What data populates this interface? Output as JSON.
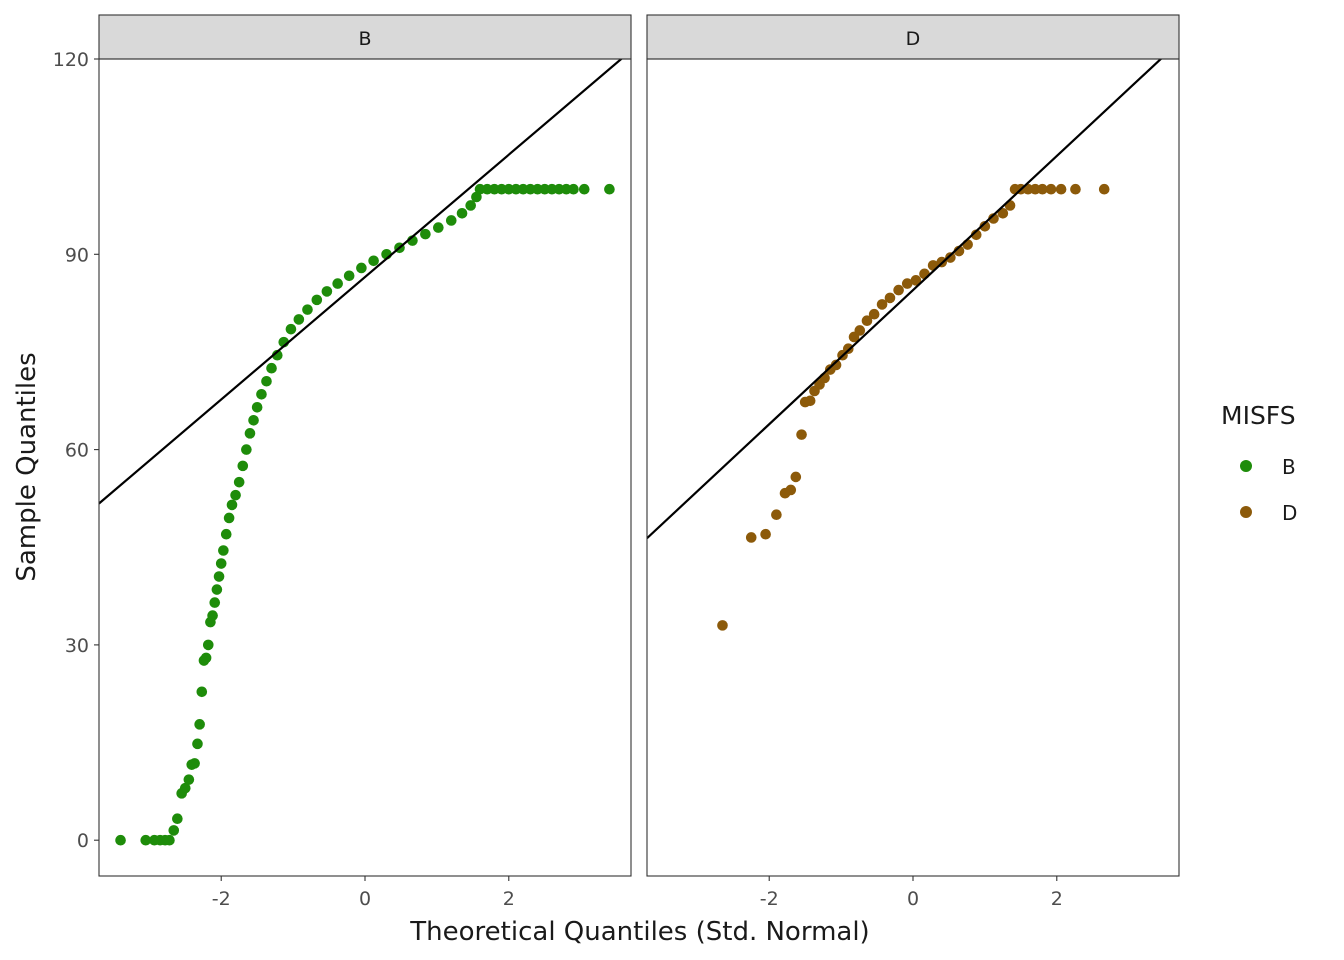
{
  "chart_data": {
    "type": "scatter",
    "subtype": "qq-plot",
    "xlabel": "Theoretical Quantiles (Std. Normal)",
    "ylabel": "Sample Quantiles",
    "xlim": [
      -3.7,
      3.7
    ],
    "ylim": [
      -5.5,
      120
    ],
    "x_ticks": [
      -2,
      0,
      2
    ],
    "x_tick_labels": [
      "-2",
      "0",
      "2"
    ],
    "y_ticks": [
      0,
      30,
      60,
      90,
      120
    ],
    "y_tick_labels": [
      "0",
      "30",
      "60",
      "90",
      "120"
    ],
    "grid": false,
    "legend": {
      "title": "MISFS",
      "position": "right",
      "entries": [
        {
          "label": "B",
          "color": "#1e8c0a"
        },
        {
          "label": "D",
          "color": "#8c5a0a"
        }
      ]
    },
    "panels": [
      {
        "strip": "B",
        "color": "#1e8c0a",
        "reference_line": {
          "intercept": 86.5,
          "slope": 9.4
        },
        "points": [
          [
            -3.4,
            0
          ],
          [
            -3.05,
            0
          ],
          [
            -2.93,
            0
          ],
          [
            -2.85,
            0
          ],
          [
            -2.78,
            0
          ],
          [
            -2.72,
            0
          ],
          [
            -2.66,
            1.5
          ],
          [
            -2.61,
            3.3
          ],
          [
            -2.55,
            7.2
          ],
          [
            -2.5,
            8
          ],
          [
            -2.45,
            9.3
          ],
          [
            -2.41,
            11.6
          ],
          [
            -2.37,
            11.8
          ],
          [
            -2.33,
            14.8
          ],
          [
            -2.3,
            17.8
          ],
          [
            -2.27,
            22.8
          ],
          [
            -2.24,
            27.6
          ],
          [
            -2.21,
            28
          ],
          [
            -2.18,
            30
          ],
          [
            -2.15,
            33.5
          ],
          [
            -2.12,
            34.5
          ],
          [
            -2.09,
            36.5
          ],
          [
            -2.06,
            38.5
          ],
          [
            -2.03,
            40.5
          ],
          [
            -2.0,
            42.5
          ],
          [
            -1.97,
            44.5
          ],
          [
            -1.93,
            47
          ],
          [
            -1.89,
            49.5
          ],
          [
            -1.85,
            51.5
          ],
          [
            -1.8,
            53
          ],
          [
            -1.75,
            55
          ],
          [
            -1.7,
            57.5
          ],
          [
            -1.65,
            60
          ],
          [
            -1.6,
            62.5
          ],
          [
            -1.55,
            64.5
          ],
          [
            -1.5,
            66.5
          ],
          [
            -1.44,
            68.5
          ],
          [
            -1.37,
            70.5
          ],
          [
            -1.3,
            72.5
          ],
          [
            -1.22,
            74.5
          ],
          [
            -1.13,
            76.5
          ],
          [
            -1.03,
            78.5
          ],
          [
            -0.92,
            80
          ],
          [
            -0.8,
            81.5
          ],
          [
            -0.67,
            83
          ],
          [
            -0.53,
            84.3
          ],
          [
            -0.38,
            85.5
          ],
          [
            -0.22,
            86.7
          ],
          [
            -0.05,
            87.9
          ],
          [
            0.12,
            89
          ],
          [
            0.3,
            90
          ],
          [
            0.48,
            91
          ],
          [
            0.66,
            92.1
          ],
          [
            0.84,
            93.1
          ],
          [
            1.02,
            94.1
          ],
          [
            1.2,
            95.2
          ],
          [
            1.35,
            96.3
          ],
          [
            1.47,
            97.5
          ],
          [
            1.55,
            98.8
          ],
          [
            1.6,
            100
          ],
          [
            1.7,
            100
          ],
          [
            1.8,
            100
          ],
          [
            1.9,
            100
          ],
          [
            2.0,
            100
          ],
          [
            2.1,
            100
          ],
          [
            2.2,
            100
          ],
          [
            2.3,
            100
          ],
          [
            2.4,
            100
          ],
          [
            2.5,
            100
          ],
          [
            2.6,
            100
          ],
          [
            2.7,
            100
          ],
          [
            2.8,
            100
          ],
          [
            2.9,
            100
          ],
          [
            3.05,
            100
          ],
          [
            3.4,
            100
          ]
        ]
      },
      {
        "strip": "D",
        "color": "#8c5a0a",
        "reference_line": {
          "intercept": 84.5,
          "slope": 10.3
        },
        "points": [
          [
            -2.65,
            33
          ],
          [
            -2.25,
            46.5
          ],
          [
            -2.05,
            47
          ],
          [
            -1.9,
            50
          ],
          [
            -1.78,
            53.3
          ],
          [
            -1.7,
            53.8
          ],
          [
            -1.63,
            55.8
          ],
          [
            -1.55,
            62.3
          ],
          [
            -1.5,
            67.3
          ],
          [
            -1.43,
            67.5
          ],
          [
            -1.37,
            69
          ],
          [
            -1.3,
            70
          ],
          [
            -1.23,
            71
          ],
          [
            -1.15,
            72.3
          ],
          [
            -1.07,
            73
          ],
          [
            -0.98,
            74.5
          ],
          [
            -0.9,
            75.5
          ],
          [
            -0.82,
            77.3
          ],
          [
            -0.74,
            78.3
          ],
          [
            -0.64,
            79.8
          ],
          [
            -0.54,
            80.8
          ],
          [
            -0.43,
            82.3
          ],
          [
            -0.32,
            83.3
          ],
          [
            -0.2,
            84.5
          ],
          [
            -0.08,
            85.5
          ],
          [
            0.04,
            86
          ],
          [
            0.16,
            87
          ],
          [
            0.28,
            88.3
          ],
          [
            0.4,
            88.8
          ],
          [
            0.52,
            89.5
          ],
          [
            0.64,
            90.5
          ],
          [
            0.76,
            91.5
          ],
          [
            0.88,
            93
          ],
          [
            1.0,
            94.3
          ],
          [
            1.12,
            95.5
          ],
          [
            1.25,
            96.3
          ],
          [
            1.35,
            97.5
          ],
          [
            1.42,
            100
          ],
          [
            1.5,
            100
          ],
          [
            1.6,
            100
          ],
          [
            1.7,
            100
          ],
          [
            1.8,
            100
          ],
          [
            1.92,
            100
          ],
          [
            2.06,
            100
          ],
          [
            2.26,
            100
          ],
          [
            2.66,
            100
          ]
        ]
      }
    ]
  }
}
